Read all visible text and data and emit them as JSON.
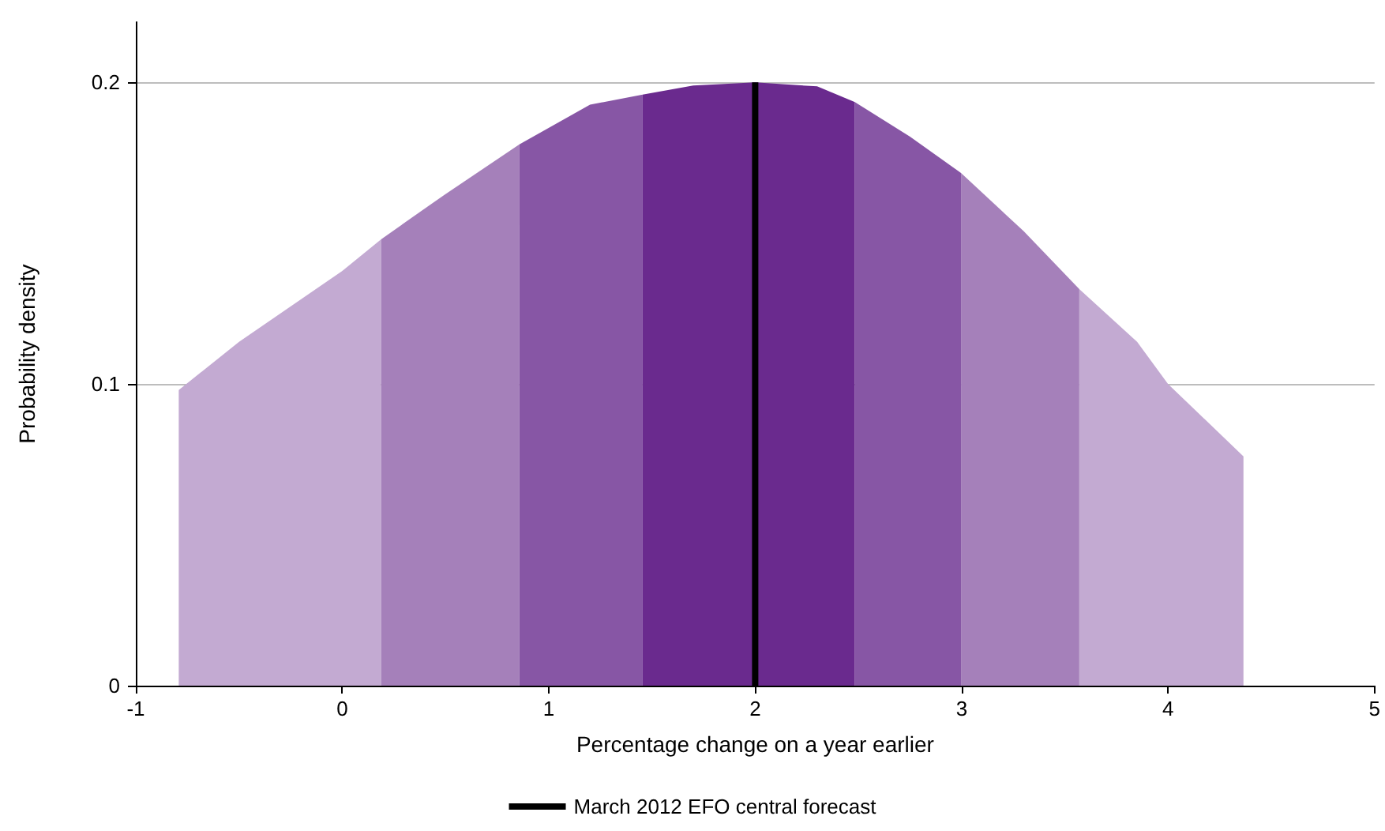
{
  "chart_data": {
    "type": "area",
    "xlabel": "Percentage change on a year earlier",
    "ylabel": "Probability density",
    "xlim": [
      -1,
      5
    ],
    "xticks": [
      -1,
      0,
      1,
      2,
      3,
      4,
      5
    ],
    "ylim": [
      0,
      0.22
    ],
    "yticks": [
      0,
      0.1,
      0.2
    ],
    "grid": "y",
    "legend": "bottom",
    "marker": "none",
    "series": [
      {
        "color": "#c3aad2",
        "x": [
          -0.792,
          -0.5,
          0,
          0.188
        ],
        "values": [
          0.098,
          0.114,
          0.1375,
          0.148
        ]
      },
      {
        "color": "#a580ba",
        "x": [
          0.188,
          0.5,
          0.858
        ],
        "values": [
          0.148,
          0.163,
          0.1795
        ]
      },
      {
        "color": "#8756a5",
        "x": [
          0.858,
          1.2,
          1.455
        ],
        "values": [
          0.1795,
          0.1926,
          0.196
        ]
      },
      {
        "color": "#6a2a8e",
        "x": [
          1.455,
          1.7,
          2,
          2.3,
          2.483
        ],
        "values": [
          0.196,
          0.199,
          0.2,
          0.1987,
          0.1935
        ]
      },
      {
        "color": "#8756a5",
        "x": [
          2.483,
          2.75,
          2.997
        ],
        "values": [
          0.1935,
          0.182,
          0.17
        ]
      },
      {
        "color": "#a580ba",
        "x": [
          2.997,
          3.3,
          3.57
        ],
        "values": [
          0.17,
          0.1507,
          0.1315
        ]
      },
      {
        "color": "#c3aad2",
        "x": [
          3.57,
          3.85,
          4,
          4.365
        ],
        "values": [
          0.1315,
          0.114,
          0.1,
          0.076
        ]
      },
      {
        "type": "line",
        "name": "March 2012 EFO central forecast",
        "color": "#000000",
        "x": [
          2,
          2
        ],
        "values": [
          0,
          0.2
        ]
      }
    ]
  }
}
